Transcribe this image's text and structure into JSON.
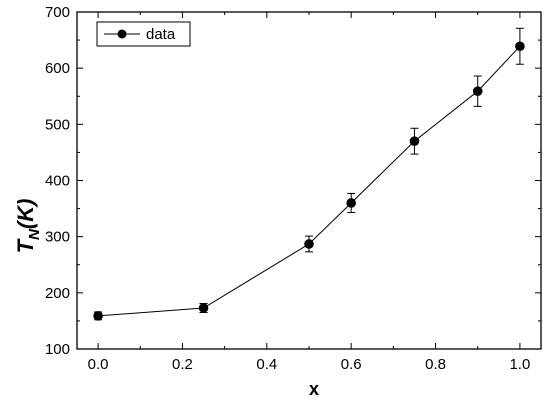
{
  "chart_data": {
    "type": "line",
    "xlabel": "x",
    "ylabel": {
      "main": "T",
      "sub": "N",
      "rest": "(K)"
    },
    "xlim": [
      -0.05,
      1.05
    ],
    "ylim": [
      100,
      700
    ],
    "xticks": [
      "0.0",
      "0.2",
      "0.4",
      "0.6",
      "0.8",
      "1.0"
    ],
    "xtick_values": [
      0.0,
      0.2,
      0.4,
      0.6,
      0.8,
      1.0
    ],
    "yticks": [
      "100",
      "200",
      "300",
      "400",
      "500",
      "600",
      "700"
    ],
    "ytick_values": [
      100,
      200,
      300,
      400,
      500,
      600,
      700
    ],
    "legend_position": "top-left",
    "grid": false,
    "series": [
      {
        "name": "data",
        "color": "#000000",
        "marker": "filled-circle",
        "x": [
          0.0,
          0.25,
          0.5,
          0.6,
          0.75,
          0.9,
          1.0
        ],
        "y": [
          159,
          173,
          287,
          360,
          470,
          559,
          639
        ],
        "yerr": [
          7,
          8,
          14,
          17,
          23,
          27,
          32
        ]
      }
    ]
  }
}
